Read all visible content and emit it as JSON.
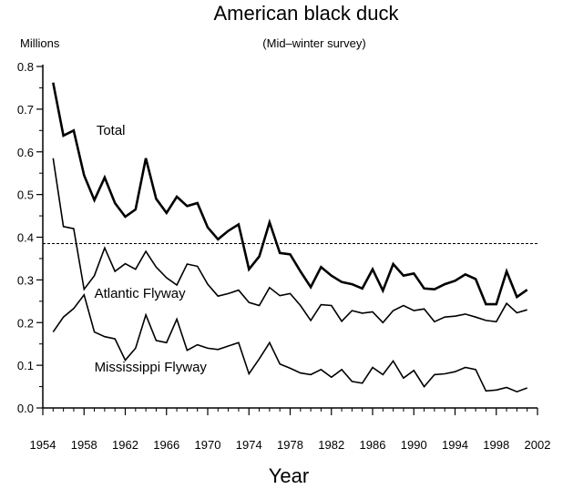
{
  "chart_data": {
    "type": "line",
    "title": "American black duck",
    "subtitle": "(Mid–winter survey)",
    "ylabel": "Millions",
    "xlabel": "Year",
    "xlim": [
      1954,
      2002
    ],
    "ylim": [
      0,
      0.8
    ],
    "xticks": [
      1954,
      1958,
      1962,
      1966,
      1970,
      1974,
      1978,
      1982,
      1986,
      1990,
      1994,
      1998,
      2002
    ],
    "yticks": [
      "0.0",
      "0.1",
      "0.2",
      "0.3",
      "0.4",
      "0.5",
      "0.6",
      "0.7",
      "0.8"
    ],
    "reference_line": {
      "y": 0.385,
      "style": "dashed"
    },
    "grid": false,
    "x": [
      1955,
      1956,
      1957,
      1958,
      1959,
      1960,
      1961,
      1962,
      1963,
      1964,
      1965,
      1966,
      1967,
      1968,
      1969,
      1970,
      1971,
      1972,
      1973,
      1974,
      1975,
      1976,
      1977,
      1978,
      1979,
      1980,
      1981,
      1982,
      1983,
      1984,
      1985,
      1986,
      1987,
      1988,
      1989,
      1990,
      1991,
      1992,
      1993,
      1994,
      1995,
      1996,
      1997,
      1998,
      1999,
      2000,
      2001
    ],
    "series": [
      {
        "name": "Total",
        "stroke_width": 2.6,
        "label_pos": [
          1959.2,
          0.64
        ],
        "values": [
          0.762,
          0.638,
          0.65,
          0.545,
          0.487,
          0.54,
          0.48,
          0.448,
          0.465,
          0.585,
          0.49,
          0.457,
          0.495,
          0.473,
          0.48,
          0.423,
          0.395,
          0.415,
          0.43,
          0.325,
          0.355,
          0.435,
          0.363,
          0.36,
          0.32,
          0.283,
          0.33,
          0.31,
          0.295,
          0.29,
          0.28,
          0.325,
          0.275,
          0.337,
          0.31,
          0.315,
          0.28,
          0.278,
          0.29,
          0.298,
          0.313,
          0.302,
          0.243,
          0.243,
          0.32,
          0.26,
          0.277
        ]
      },
      {
        "name": "Atlantic Flyway",
        "stroke_width": 1.6,
        "label_pos": [
          1959.0,
          0.258
        ],
        "values": [
          0.585,
          0.425,
          0.42,
          0.278,
          0.31,
          0.375,
          0.32,
          0.338,
          0.325,
          0.367,
          0.33,
          0.305,
          0.288,
          0.337,
          0.332,
          0.29,
          0.262,
          0.268,
          0.276,
          0.247,
          0.24,
          0.282,
          0.263,
          0.268,
          0.24,
          0.205,
          0.242,
          0.24,
          0.203,
          0.228,
          0.222,
          0.225,
          0.2,
          0.228,
          0.24,
          0.228,
          0.232,
          0.202,
          0.213,
          0.215,
          0.22,
          0.213,
          0.205,
          0.202,
          0.245,
          0.223,
          0.23
        ]
      },
      {
        "name": "Mississippi Flyway",
        "stroke_width": 1.6,
        "label_pos": [
          1959.0,
          0.085
        ],
        "values": [
          0.178,
          0.213,
          0.233,
          0.265,
          0.178,
          0.167,
          0.162,
          0.112,
          0.14,
          0.218,
          0.158,
          0.153,
          0.208,
          0.135,
          0.148,
          0.14,
          0.137,
          0.145,
          0.153,
          0.08,
          0.115,
          0.153,
          0.103,
          0.093,
          0.082,
          0.078,
          0.09,
          0.072,
          0.09,
          0.062,
          0.058,
          0.095,
          0.078,
          0.11,
          0.07,
          0.088,
          0.05,
          0.078,
          0.08,
          0.085,
          0.095,
          0.09,
          0.04,
          0.042,
          0.048,
          0.038,
          0.047
        ]
      }
    ]
  }
}
